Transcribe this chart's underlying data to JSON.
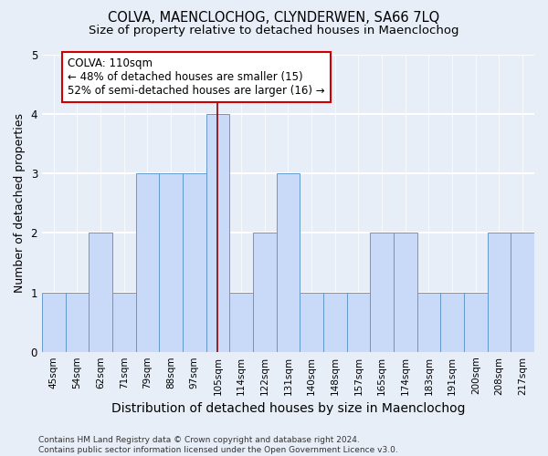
{
  "title": "COLVA, MAENCLOCHOG, CLYNDERWEN, SA66 7LQ",
  "subtitle": "Size of property relative to detached houses in Maenclochog",
  "xlabel": "Distribution of detached houses by size in Maenclochog",
  "ylabel": "Number of detached properties",
  "categories": [
    "45sqm",
    "54sqm",
    "62sqm",
    "71sqm",
    "79sqm",
    "88sqm",
    "97sqm",
    "105sqm",
    "114sqm",
    "122sqm",
    "131sqm",
    "140sqm",
    "148sqm",
    "157sqm",
    "165sqm",
    "174sqm",
    "183sqm",
    "191sqm",
    "200sqm",
    "208sqm",
    "217sqm"
  ],
  "values": [
    1,
    1,
    2,
    1,
    3,
    3,
    3,
    4,
    1,
    2,
    3,
    1,
    1,
    1,
    2,
    2,
    1,
    1,
    1,
    2,
    2
  ],
  "bar_color": "#c9daf8",
  "bar_edge_color": "#6699cc",
  "vline_color": "#8b0000",
  "vline_x": 7,
  "ylim": [
    0,
    5
  ],
  "yticks": [
    0,
    1,
    2,
    3,
    4,
    5
  ],
  "annotation_text": "COLVA: 110sqm\n← 48% of detached houses are smaller (15)\n52% of semi-detached houses are larger (16) →",
  "annotation_box_facecolor": "#ffffff",
  "annotation_box_edgecolor": "#cc0000",
  "footer": "Contains HM Land Registry data © Crown copyright and database right 2024.\nContains public sector information licensed under the Open Government Licence v3.0.",
  "background_color": "#e8eef8",
  "grid_color": "#ffffff",
  "title_fontsize": 10.5,
  "subtitle_fontsize": 9.5,
  "xlabel_fontsize": 9,
  "ylabel_fontsize": 9,
  "tick_fontsize": 7.5,
  "annotation_fontsize": 8.5,
  "footer_fontsize": 6.5
}
